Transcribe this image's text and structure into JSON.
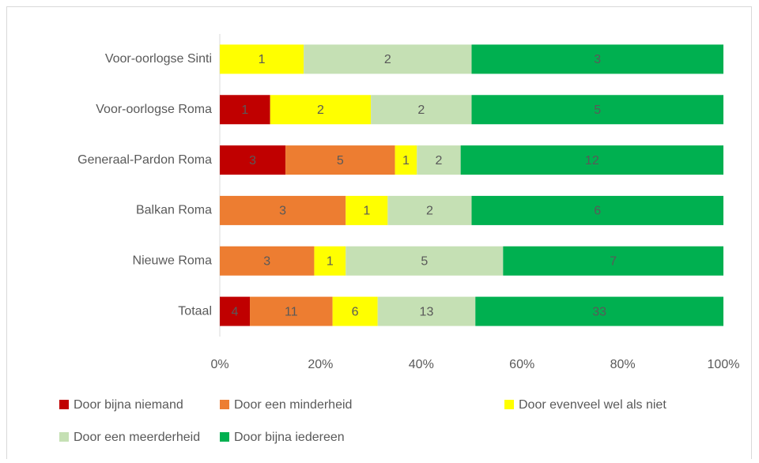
{
  "chart_data": {
    "type": "stacked_bar_100",
    "orientation": "horizontal",
    "categories": [
      "Voor-oorlogse Sinti",
      "Voor-oorlogse Roma",
      "Generaal-Pardon Roma",
      "Balkan Roma",
      "Nieuwe Roma",
      "Totaal"
    ],
    "series": [
      {
        "name": "Door bijna niemand",
        "color": "#c00000",
        "values": [
          null,
          1,
          3,
          null,
          null,
          4
        ]
      },
      {
        "name": "Door een minderheid",
        "color": "#ed7d31",
        "values": [
          null,
          null,
          5,
          3,
          3,
          11
        ]
      },
      {
        "name": "Door evenveel wel als niet",
        "color": "#ffff00",
        "values": [
          1,
          2,
          1,
          1,
          1,
          6
        ]
      },
      {
        "name": "Door een meerderheid",
        "color": "#c5e0b4",
        "values": [
          2,
          2,
          2,
          2,
          5,
          13
        ]
      },
      {
        "name": "Door bijna iedereen",
        "color": "#00b050",
        "values": [
          3,
          5,
          12,
          6,
          7,
          33
        ]
      }
    ],
    "xlim": [
      0,
      100
    ],
    "xticks": [
      {
        "value": 0,
        "label": "0%"
      },
      {
        "value": 20,
        "label": "20%"
      },
      {
        "value": 40,
        "label": "40%"
      },
      {
        "value": 60,
        "label": "60%"
      },
      {
        "value": 80,
        "label": "80%"
      },
      {
        "value": 100,
        "label": "100%"
      }
    ],
    "legend": "bottom"
  }
}
